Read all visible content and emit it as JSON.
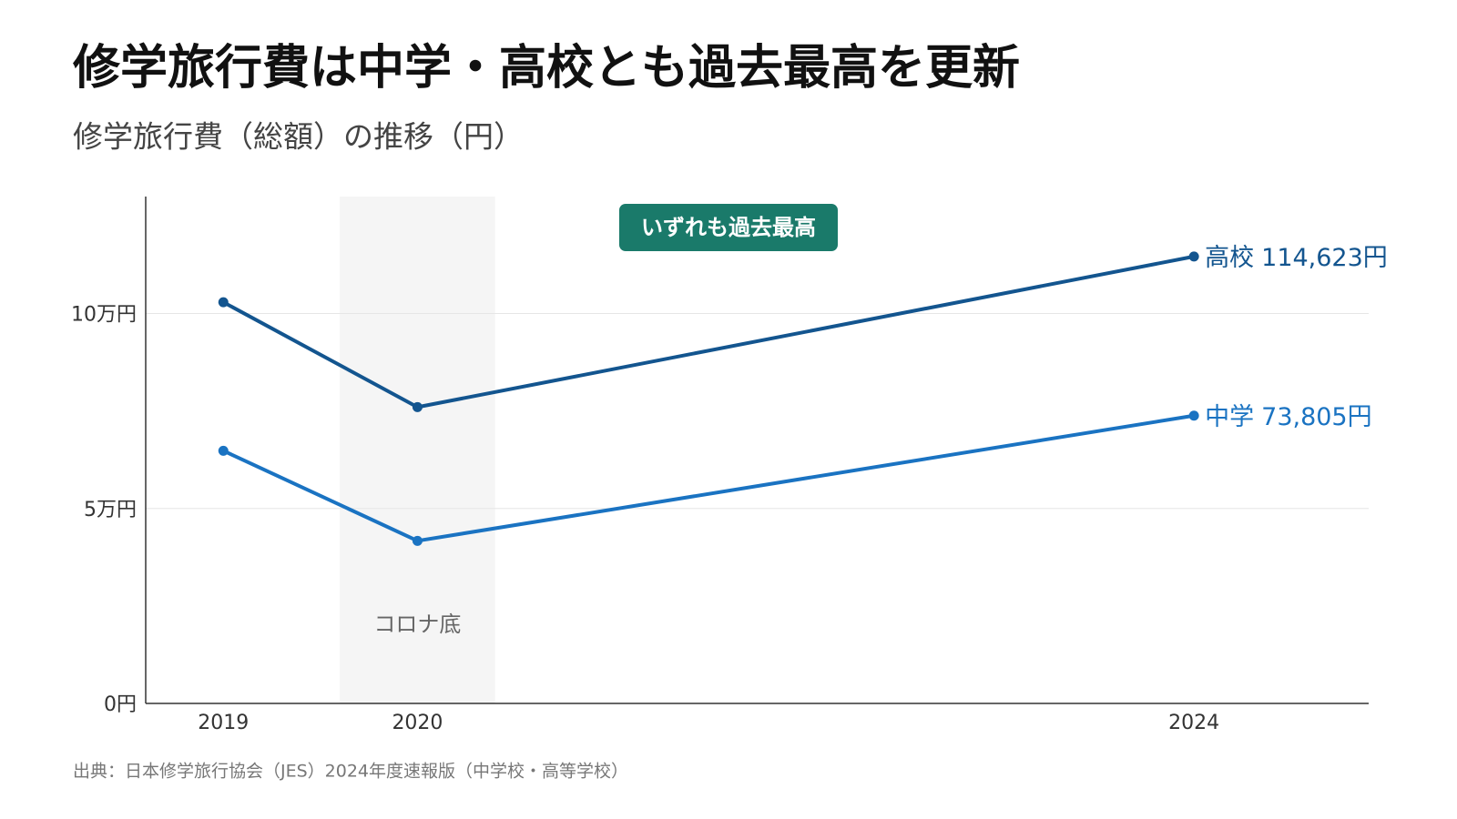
{
  "chart_data": {
    "type": "line",
    "title": "修学旅行費は中学・高校とも過去最高を更新",
    "subtitle": "修学旅行費（総額）の推移（円）",
    "source": "出典：日本修学旅行協会（JES）2024年度速報版（中学校・高等学校）",
    "annotation": "いずれも過去最高",
    "shade": {
      "x": [
        2019.6,
        2020.4
      ],
      "label": "コロナ底"
    },
    "x": [
      2019,
      2020,
      2024
    ],
    "series": [
      {
        "name": "高校",
        "color": "#13558f",
        "values": [
          102900,
          76000,
          114623
        ],
        "value_labels": [
          null,
          null,
          "114,623円"
        ]
      },
      {
        "name": "中学",
        "color": "#1a73c2",
        "values": [
          64800,
          41700,
          73805
        ],
        "value_labels": [
          null,
          null,
          "73,805円"
        ]
      }
    ],
    "xlim": [
      2018.6,
      2024.9
    ],
    "xticks": [
      2019,
      2020,
      2024
    ],
    "ylim": [
      0,
      130000
    ],
    "yticks": [
      {
        "value": 0,
        "label": "0円"
      },
      {
        "value": 50000,
        "label": "5万円"
      },
      {
        "value": 100000,
        "label": "10万円"
      }
    ],
    "grid": true
  }
}
